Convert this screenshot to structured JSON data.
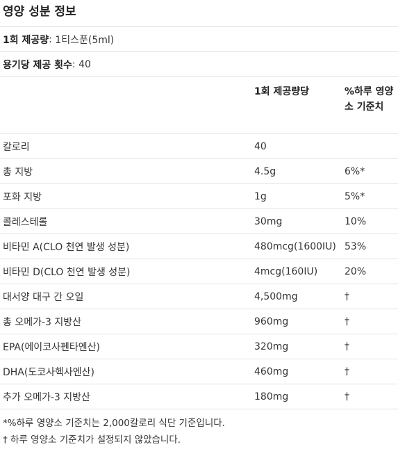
{
  "title": "영양 성분 정보",
  "serving_size": {
    "label": "1회 제공량",
    "separator": ":",
    "value": " 1티스푼(5ml)"
  },
  "servings_per_container": {
    "label": "용기당 제공 횟수",
    "separator": ":",
    "value": " 40"
  },
  "table": {
    "header": {
      "amount": "1회 제공량당",
      "daily_value": "%하루 영양소 기준치"
    },
    "rows": [
      {
        "name": "칼로리",
        "amount": "40",
        "dv": ""
      },
      {
        "name": "총 지방",
        "amount": "4.5g",
        "dv": "6%*"
      },
      {
        "name": "포화 지방",
        "amount": "1g",
        "dv": "5%*"
      },
      {
        "name": "콜레스테롤",
        "amount": "30mg",
        "dv": "10%"
      },
      {
        "name": "비타민 A(CLO 천연 발생 성분)",
        "amount": "480mcg(1600IU)",
        "dv": "53%"
      },
      {
        "name": "비타민 D(CLO 천연 발생 성분)",
        "amount": "4mcg(160IU)",
        "dv": "20%"
      },
      {
        "name": "대서양 대구 간 오일",
        "amount": "4,500mg",
        "dv": "†"
      },
      {
        "name": "총 오메가-3 지방산",
        "amount": "960mg",
        "dv": "†"
      },
      {
        "name": "EPA(에이코사펜타엔산)",
        "amount": "320mg",
        "dv": "†"
      },
      {
        "name": "DHA(도코사헥사엔산)",
        "amount": "460mg",
        "dv": "†"
      },
      {
        "name": "추가 오메가-3 지방산",
        "amount": "180mg",
        "dv": "†"
      }
    ]
  },
  "footnotes": [
    "*%하루 영양소 기준치는 2,000칼로리 식단 기준입니다.",
    "† 하루 영양소 기준치가 설정되지 않았습니다."
  ]
}
